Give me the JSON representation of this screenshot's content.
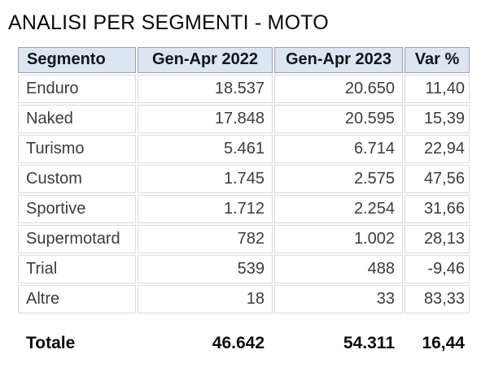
{
  "title": "ANALISI PER SEGMENTI - MOTO",
  "table": {
    "columns": [
      "Segmento",
      "Gen-Apr 2022",
      "Gen-Apr 2023",
      "Var %"
    ],
    "rows": [
      {
        "segment": "Enduro",
        "y2022": "18.537",
        "y2023": "20.650",
        "var": "11,40"
      },
      {
        "segment": "Naked",
        "y2022": "17.848",
        "y2023": "20.595",
        "var": "15,39"
      },
      {
        "segment": "Turismo",
        "y2022": "5.461",
        "y2023": "6.714",
        "var": "22,94"
      },
      {
        "segment": "Custom",
        "y2022": "1.745",
        "y2023": "2.575",
        "var": "47,56"
      },
      {
        "segment": "Sportive",
        "y2022": "1.712",
        "y2023": "2.254",
        "var": "31,66"
      },
      {
        "segment": "Supermotard",
        "y2022": "782",
        "y2023": "1.002",
        "var": "28,13"
      },
      {
        "segment": "Trial",
        "y2022": "539",
        "y2023": "488",
        "var": "-9,46"
      },
      {
        "segment": "Altre",
        "y2022": "18",
        "y2023": "33",
        "var": "83,33"
      }
    ],
    "total": {
      "label": "Totale",
      "y2022": "46.642",
      "y2023": "54.311",
      "var": "16,44"
    }
  },
  "colors": {
    "header_bg": "#dce6f1",
    "header_border": "#99a0aa",
    "cell_border": "#d8dadc",
    "body_text": "#3c3c3c",
    "strong_text": "#0c0c0c"
  }
}
